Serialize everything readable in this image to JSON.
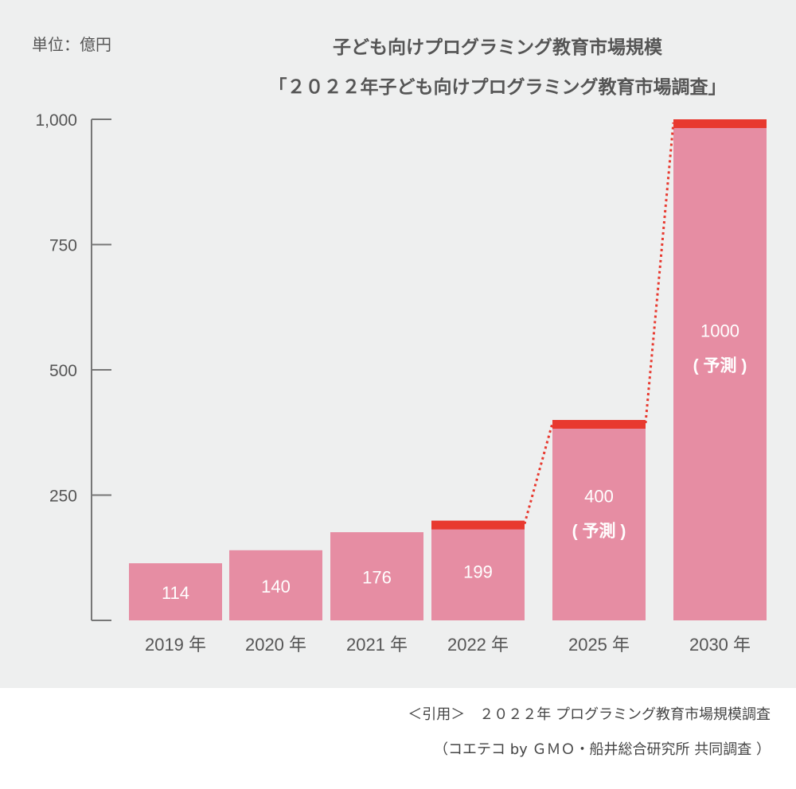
{
  "unit_label": "単位：億円",
  "title_line1": "子ども向けプログラミング教育市場規模",
  "title_line2": "「２０２２年子ども向けプログラミング教育市場調査」",
  "source_line1": "＜引用＞　２０２２年 プログラミング教育市場規模調査",
  "source_line2": "（コエテコ by ＧＭＯ・船井総合研究所 共同調査 ）",
  "colors": {
    "background": "#eeefef",
    "bar": "#e68da3",
    "highlight": "#e8392f",
    "axis": "#777777",
    "label": "#555555",
    "value_text": "#ffffff"
  },
  "chart_data": {
    "type": "bar",
    "title": "子ども向けプログラミング教育市場規模",
    "subtitle": "「２０２２年子ども向けプログラミング教育市場調査」",
    "ylabel": "単位：億円",
    "ylim": [
      0,
      1000
    ],
    "yticks": [
      250,
      500,
      750,
      1000
    ],
    "ytick_labels": [
      "250",
      "500",
      "750",
      "1,000"
    ],
    "categories": [
      "2019 年",
      "2020 年",
      "2021 年",
      "2022 年",
      "2025 年",
      "2030 年"
    ],
    "values": [
      114,
      140,
      176,
      199,
      400,
      1000
    ],
    "value_labels": [
      "114",
      "140",
      "176",
      "199",
      "400",
      "1000"
    ],
    "forecast_note": "( 予測 )",
    "forecast": [
      false,
      false,
      false,
      false,
      true,
      true
    ],
    "highlighted_top": [
      false,
      false,
      false,
      true,
      true,
      true
    ],
    "trend_line": "dotted",
    "grid": false
  }
}
